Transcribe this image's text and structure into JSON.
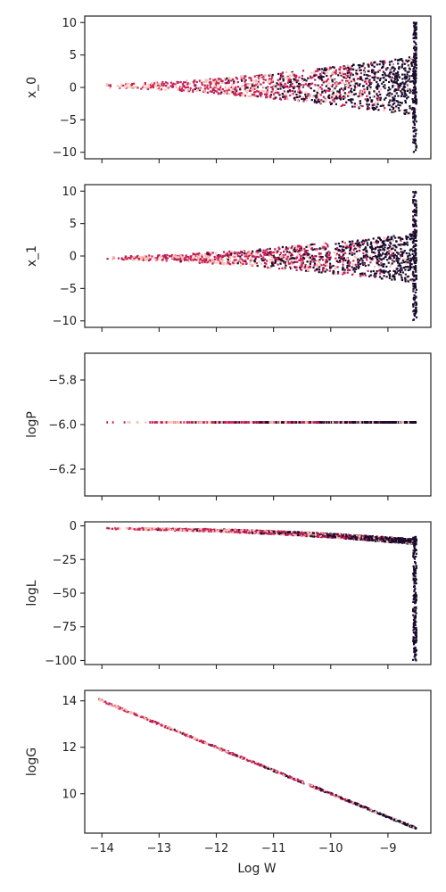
{
  "figure": {
    "xlabel": "Log W",
    "x_ticks": [
      -14,
      -13,
      -12,
      -11,
      -10,
      -9
    ],
    "colors": {
      "dark": "#1b0c2e",
      "mid": "#c51f58",
      "light": "#f7c1b0",
      "axis": "#222222"
    }
  },
  "chart_data": [
    {
      "type": "scatter",
      "ylabel": "x_0",
      "xlim": [
        -14.3,
        -8.25
      ],
      "ylim": [
        -11,
        11
      ],
      "y_ticks": [
        10,
        5,
        0,
        -5,
        -10
      ],
      "pattern": "fan",
      "fan": {
        "x_start": -14.05,
        "x_end": -8.5,
        "center": 0.2,
        "half_width_start": 0.3,
        "half_width_end": 4.6,
        "spike_ymin": -10,
        "spike_ymax": 10
      }
    },
    {
      "type": "scatter",
      "ylabel": "x_1",
      "xlim": [
        -14.3,
        -8.25
      ],
      "ylim": [
        -11,
        11
      ],
      "y_ticks": [
        10,
        5,
        0,
        -5,
        -10
      ],
      "pattern": "fan",
      "fan": {
        "x_start": -14.05,
        "x_end": -8.5,
        "center": -0.3,
        "half_width_start": 0.2,
        "half_width_end": 3.8,
        "spike_ymin": -10,
        "spike_ymax": 10
      }
    },
    {
      "type": "scatter",
      "ylabel": "logP",
      "xlim": [
        -14.3,
        -8.25
      ],
      "ylim": [
        -6.32,
        -5.68
      ],
      "y_ticks": [
        -5.8,
        -6.0,
        -6.2
      ],
      "y_tick_labels": [
        "−5.8",
        "−6.0",
        "−6.2"
      ],
      "pattern": "flat",
      "flat": {
        "x_start": -14.05,
        "x_end": -8.5,
        "y": -5.99
      }
    },
    {
      "type": "scatter",
      "ylabel": "logL",
      "xlim": [
        -14.3,
        -8.25
      ],
      "ylim": [
        -103,
        3
      ],
      "y_ticks": [
        0,
        -25,
        -50,
        -75,
        -100
      ],
      "pattern": "curve",
      "curve": {
        "x_start": -14.05,
        "x_end": -8.5,
        "y_start": -1.5,
        "y_end": -10,
        "spread": 3,
        "spike_ymin": -100,
        "spike_ymax": -8
      }
    },
    {
      "type": "scatter",
      "ylabel": "logG",
      "xlim": [
        -14.3,
        -8.25
      ],
      "ylim": [
        8.3,
        14.45
      ],
      "y_ticks": [
        14,
        12,
        10
      ],
      "pattern": "line",
      "line": {
        "x_start": -14.05,
        "x_end": -8.5,
        "y_start": 14.05,
        "y_end": 8.5
      }
    }
  ]
}
